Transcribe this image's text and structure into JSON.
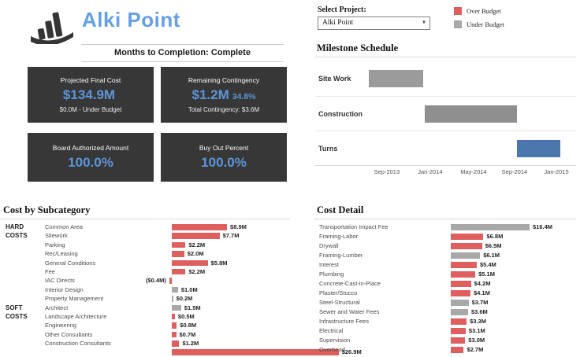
{
  "header": {
    "title": "Alki Point",
    "subtitle": "Months to Completion: Complete"
  },
  "project_selector": {
    "label": "Select Project:",
    "value": "Alki Point"
  },
  "legend": {
    "items": [
      {
        "label": "Over Budget",
        "color": "#df5f5f"
      },
      {
        "label": "Under Budget",
        "color": "#a8a8a8"
      }
    ]
  },
  "kpis": [
    {
      "label": "Projected Final Cost",
      "value": "$134.9M",
      "suffix": "",
      "sub": "$0.0M - Under Budget"
    },
    {
      "label": "Remaining Contingency",
      "value": "$1.2M",
      "suffix": "34.8%",
      "sub": "Total Contingency: $3.6M"
    },
    {
      "label": "Board Authorized Amount",
      "value": "100.0%",
      "suffix": "",
      "sub": ""
    },
    {
      "label": "Buy Out Percent",
      "value": "100.0%",
      "suffix": "",
      "sub": ""
    }
  ],
  "colors": {
    "over_budget": "#df5f5f",
    "under_budget": "#a8a8a8",
    "card_bg": "#373737",
    "accent_blue": "#5d95d9"
  },
  "chart_data": [
    {
      "type": "gantt",
      "title": "Milestone Schedule",
      "tasks": [
        {
          "label": "Site Work",
          "start": "Jul-2013",
          "end": "Dec-2013",
          "left_pct": 3.7,
          "width_pct": 25.1,
          "color": "#9b9b9b"
        },
        {
          "label": "Construction",
          "start": "Dec-2013",
          "end": "Sep-2014",
          "left_pct": 29.5,
          "width_pct": 43.2,
          "color": "#8f8f8f"
        },
        {
          "label": "Turns",
          "start": "Sep-2014",
          "end": "Jan-2015",
          "left_pct": 72.7,
          "width_pct": 19.9,
          "color": "#4b76ae"
        }
      ],
      "axis_ticks": [
        {
          "label": "Sep-2013",
          "pct": 11.4
        },
        {
          "label": "Jan-2014",
          "pct": 31.7
        },
        {
          "label": "May-2014",
          "pct": 52.0
        },
        {
          "label": "Sep-2014",
          "pct": 71.2
        },
        {
          "label": "Jan-2015",
          "pct": 90.8
        }
      ]
    },
    {
      "type": "bar",
      "title": "Cost by Subcategory",
      "unit": "$M",
      "legend_note": "red = Over Budget, gray = Under Budget",
      "rows": [
        {
          "group": "HARD\nCOSTS",
          "label": "Common Area",
          "value": 8.9,
          "display": "$8.9M",
          "status": "over"
        },
        {
          "label": "Sitework",
          "value": 7.7,
          "display": "$7.7M",
          "status": "over"
        },
        {
          "label": "Parking",
          "value": 2.2,
          "display": "$2.2M",
          "status": "over"
        },
        {
          "label": "Rec/Leasing",
          "value": 2.0,
          "display": "$2.0M",
          "status": "over"
        },
        {
          "label": "General Conditions",
          "value": 5.8,
          "display": "$5.8M",
          "status": "over"
        },
        {
          "label": "Fee",
          "value": 2.2,
          "display": "$2.2M",
          "status": "over"
        },
        {
          "label": "IAC Directs",
          "value": -0.4,
          "display": "($0.4M)",
          "status": "over"
        },
        {
          "label": "Interior Design",
          "value": 1.0,
          "display": "$1.0M",
          "status": "under"
        },
        {
          "label": "Property Management",
          "value": 0.2,
          "display": "$0.2M",
          "status": "under"
        },
        {
          "group": "SOFT\nCOSTS",
          "label": "Architect",
          "value": 1.5,
          "display": "$1.5M",
          "status": "under"
        },
        {
          "label": "Landscape Architecture",
          "value": 0.5,
          "display": "$0.5M",
          "status": "over"
        },
        {
          "label": "Engineering",
          "value": 0.8,
          "display": "$0.8M",
          "status": "over"
        },
        {
          "label": "Other Consultants",
          "value": 0.7,
          "display": "$0.7M",
          "status": "over"
        },
        {
          "label": "Construction Consultants",
          "value": 1.2,
          "display": "$1.2M",
          "status": "over"
        },
        {
          "label": "",
          "value": 26.9,
          "display": "$26.9M",
          "status": "over"
        }
      ]
    },
    {
      "type": "bar",
      "title": "Cost Detail",
      "unit": "$M",
      "rows": [
        {
          "label": "Transportation Impact Fee",
          "value": 16.4,
          "display": "$16.4M",
          "status": "under"
        },
        {
          "label": "Framing-Labor",
          "value": 6.8,
          "display": "$6.8M",
          "status": "over"
        },
        {
          "label": "Drywall",
          "value": 6.5,
          "display": "$6.5M",
          "status": "over"
        },
        {
          "label": "Framing-Lumber",
          "value": 6.1,
          "display": "$6.1M",
          "status": "under"
        },
        {
          "label": "Interest",
          "value": 5.4,
          "display": "$5.4M",
          "status": "over"
        },
        {
          "label": "Plumbing",
          "value": 5.1,
          "display": "$5.1M",
          "status": "over"
        },
        {
          "label": "Concrete-Cast-in-Place",
          "value": 4.2,
          "display": "$4.2M",
          "status": "over"
        },
        {
          "label": "Plaster/Stucco",
          "value": 4.1,
          "display": "$4.1M",
          "status": "over"
        },
        {
          "label": "Steel-Structural",
          "value": 3.7,
          "display": "$3.7M",
          "status": "under"
        },
        {
          "label": "Sewer and Water Fees",
          "value": 3.6,
          "display": "$3.6M",
          "status": "under"
        },
        {
          "label": "Infrastructure Fees",
          "value": 3.3,
          "display": "$3.3M",
          "status": "over"
        },
        {
          "label": "Electrical",
          "value": 3.1,
          "display": "$3.1M",
          "status": "over"
        },
        {
          "label": "Supervision",
          "value": 3.0,
          "display": "$3.0M",
          "status": "over"
        },
        {
          "label": "Overhead",
          "value": 2.7,
          "display": "$2.7M",
          "status": "over"
        }
      ]
    }
  ]
}
